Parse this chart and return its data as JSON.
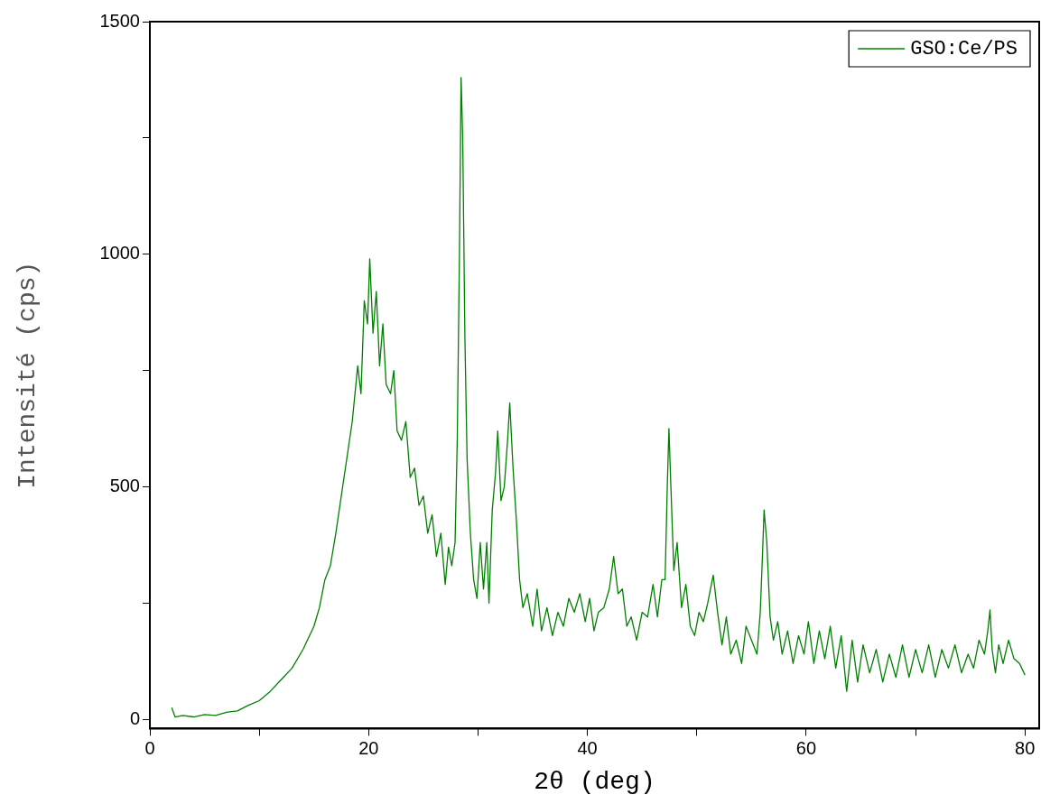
{
  "chart_data": {
    "type": "line",
    "xlabel": "2θ (deg)",
    "ylabel": "Intensité (cps)",
    "legend": "top right",
    "grid": false,
    "marker": "none",
    "line_style": "solid",
    "xlim": [
      0,
      81.3
    ],
    "xticks": [
      0,
      {
        "value": 10,
        "label": null
      },
      20,
      {
        "value": 30,
        "label": null
      },
      40,
      {
        "value": 50,
        "label": null
      },
      60,
      {
        "value": 70,
        "label": null
      },
      80
    ],
    "ylim": [
      -20,
      1500
    ],
    "yticks": [
      0,
      {
        "value": 250,
        "label": null
      },
      500,
      {
        "value": 750,
        "label": null
      },
      1000,
      {
        "value": 1250,
        "label": null
      },
      1500
    ],
    "series": [
      {
        "name": "GSO:Ce/PS",
        "color": "#008000",
        "x": [
          2.0,
          2.3,
          3,
          4,
          5,
          6,
          7,
          8,
          9,
          10,
          11,
          12,
          13,
          14,
          15,
          15.5,
          16,
          16.5,
          17,
          17.5,
          18,
          18.5,
          19,
          19.3,
          19.6,
          19.9,
          20.1,
          20.4,
          20.7,
          21,
          21.3,
          21.6,
          22,
          22.3,
          22.6,
          23,
          23.4,
          23.8,
          24.2,
          24.6,
          25,
          25.4,
          25.8,
          26.2,
          26.6,
          27,
          27.3,
          27.6,
          27.9,
          28.1,
          28.3,
          28.45,
          28.6,
          28.8,
          29,
          29.3,
          29.6,
          29.9,
          30.2,
          30.5,
          30.8,
          31,
          31.3,
          31.6,
          31.8,
          32.1,
          32.4,
          32.7,
          32.9,
          33.2,
          33.5,
          33.8,
          34.1,
          34.5,
          35,
          35.4,
          35.8,
          36.3,
          36.8,
          37.3,
          37.8,
          38.3,
          38.8,
          39.3,
          39.8,
          40.2,
          40.6,
          41,
          41.5,
          42,
          42.4,
          42.8,
          43.2,
          43.6,
          44,
          44.5,
          45,
          45.5,
          46,
          46.4,
          46.8,
          47.1,
          47.3,
          47.45,
          47.6,
          47.9,
          48.2,
          48.6,
          49,
          49.4,
          49.8,
          50.2,
          50.6,
          51,
          51.5,
          51.9,
          52.3,
          52.7,
          53.1,
          53.6,
          54.1,
          54.5,
          55,
          55.5,
          55.8,
          56,
          56.15,
          56.4,
          56.7,
          57,
          57.4,
          57.8,
          58.3,
          58.8,
          59.3,
          59.8,
          60.2,
          60.7,
          61.2,
          61.7,
          62.2,
          62.7,
          63.2,
          63.7,
          64.2,
          64.7,
          65.2,
          65.8,
          66.4,
          67,
          67.6,
          68.2,
          68.8,
          69.4,
          70,
          70.6,
          71.2,
          71.8,
          72.4,
          73,
          73.6,
          74.2,
          74.8,
          75.3,
          75.8,
          76.3,
          76.6,
          76.8,
          77,
          77.3,
          77.6,
          78,
          78.5,
          79,
          79.5,
          80
        ],
        "values": [
          25,
          5,
          8,
          5,
          10,
          8,
          15,
          18,
          30,
          40,
          60,
          85,
          110,
          150,
          200,
          240,
          300,
          330,
          400,
          480,
          560,
          640,
          760,
          700,
          900,
          850,
          990,
          830,
          920,
          760,
          850,
          720,
          700,
          750,
          620,
          600,
          640,
          520,
          540,
          460,
          480,
          400,
          440,
          350,
          400,
          290,
          370,
          330,
          380,
          600,
          1000,
          1380,
          1250,
          820,
          560,
          400,
          300,
          260,
          380,
          280,
          380,
          250,
          450,
          530,
          620,
          470,
          500,
          600,
          680,
          540,
          430,
          300,
          240,
          270,
          200,
          280,
          190,
          240,
          180,
          230,
          200,
          260,
          230,
          270,
          210,
          260,
          190,
          230,
          240,
          280,
          350,
          270,
          280,
          200,
          220,
          170,
          230,
          220,
          290,
          220,
          300,
          300,
          500,
          625,
          520,
          320,
          380,
          240,
          290,
          200,
          180,
          230,
          210,
          250,
          310,
          230,
          160,
          220,
          140,
          170,
          120,
          200,
          170,
          140,
          230,
          350,
          450,
          380,
          220,
          170,
          210,
          140,
          190,
          120,
          180,
          140,
          210,
          120,
          190,
          130,
          200,
          110,
          180,
          60,
          170,
          80,
          160,
          100,
          150,
          80,
          140,
          90,
          160,
          90,
          150,
          100,
          160,
          90,
          150,
          110,
          160,
          100,
          140,
          110,
          170,
          140,
          190,
          235,
          150,
          100,
          160,
          120,
          170,
          130,
          120,
          95
        ]
      }
    ]
  }
}
